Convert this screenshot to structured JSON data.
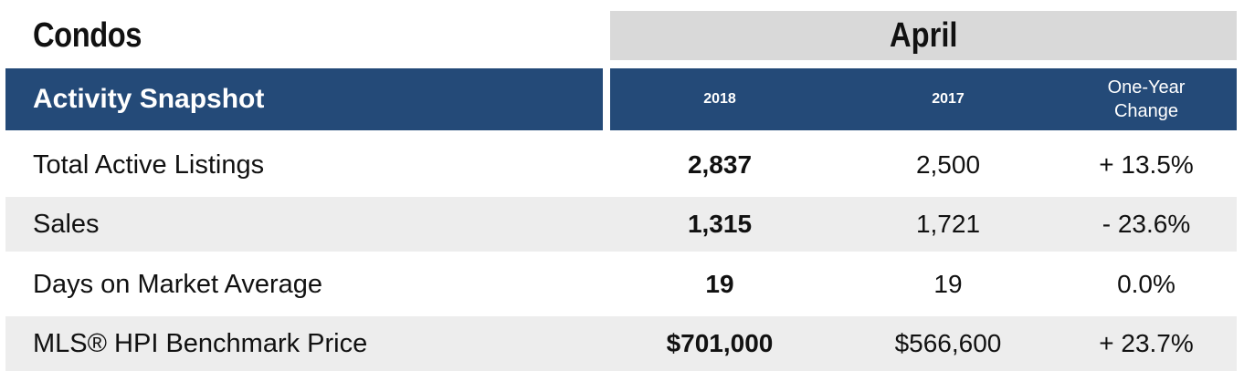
{
  "title": "Condos",
  "month": "April",
  "header": {
    "label": "Activity Snapshot",
    "year_current": "2018",
    "year_previous": "2017",
    "change_line1": "One-Year",
    "change_line2": "Change"
  },
  "rows": [
    {
      "label": "Total Active Listings",
      "current": "2,837",
      "previous": "2,500",
      "change": "+ 13.5%"
    },
    {
      "label": "Sales",
      "current": "1,315",
      "previous": "1,721",
      "change": "- 23.6%"
    },
    {
      "label": "Days on Market Average",
      "current": "19",
      "previous": "19",
      "change": "0.0%"
    },
    {
      "label": "MLS® HPI Benchmark Price",
      "current": "$701,000",
      "previous": "$566,600",
      "change": "+ 23.7%"
    }
  ],
  "colors": {
    "header_bg": "#244a78",
    "month_band_bg": "#d9d9d9",
    "shade_row_bg": "#ededed"
  }
}
